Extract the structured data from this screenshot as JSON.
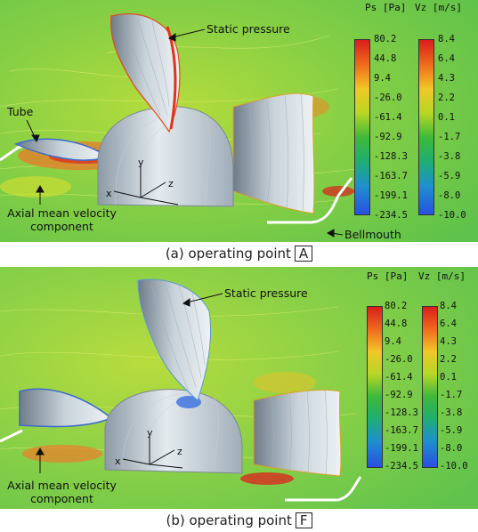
{
  "panels": [
    {
      "caption_prefix": "(a) operating point",
      "caption_point": "A",
      "ps_title": "Ps [Pa]",
      "vz_title": "Vz [m/s]",
      "labels": {
        "static_pressure": "Static pressure",
        "tube": "Tube",
        "axial_line1": "Axial mean velocity",
        "axial_line2": "component",
        "bellmouth": "Bellmouth"
      },
      "axes": {
        "x": "x",
        "y": "y",
        "z": "z"
      }
    },
    {
      "caption_prefix": "(b) operating point",
      "caption_point": "F",
      "ps_title": "Ps [Pa]",
      "vz_title": "Vz [m/s]",
      "labels": {
        "static_pressure": "Static pressure",
        "axial_line1": "Axial mean velocity",
        "axial_line2": "component"
      },
      "axes": {
        "x": "x",
        "y": "y",
        "z": "z"
      }
    }
  ],
  "ps_ticks": [
    "80.2",
    "44.8",
    "9.4",
    "-26.0",
    "-61.4",
    "-92.9",
    "-128.3",
    "-163.7",
    "-199.1",
    "-234.5"
  ],
  "vz_ticks": [
    "8.4",
    "6.4",
    "4.3",
    "2.2",
    "0.1",
    "-1.7",
    "-3.8",
    "-5.9",
    "-8.0",
    "-10.0"
  ],
  "colors": {
    "background_green": "#7fcf4a",
    "high_red": "#d81e1e",
    "low_blue": "#2a4fe0",
    "hub_grey": "#b9c4cc"
  }
}
